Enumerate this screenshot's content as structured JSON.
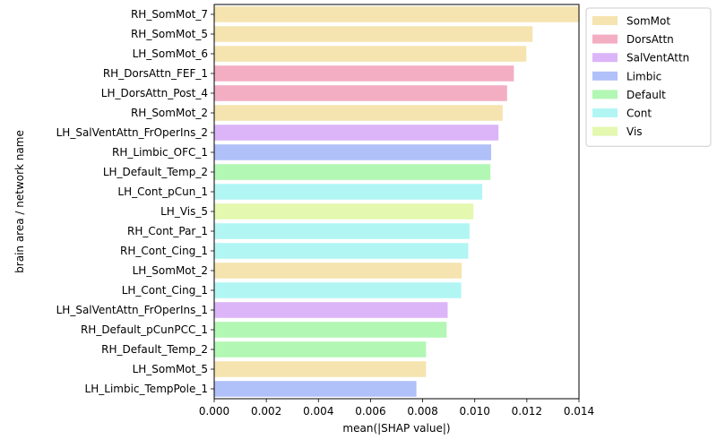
{
  "chart_data": {
    "type": "bar",
    "orientation": "horizontal",
    "title": "",
    "xlabel": "mean(|SHAP value|)",
    "ylabel": "brain area / network name",
    "xlim": [
      0,
      0.014
    ],
    "xticks": [
      "0.000",
      "0.002",
      "0.004",
      "0.006",
      "0.008",
      "0.010",
      "0.012",
      "0.014"
    ],
    "grid": false,
    "legend_position": "top-right outside",
    "categories": [
      "RH_SomMot_7",
      "RH_SomMot_5",
      "LH_SomMot_6",
      "RH_DorsAttn_FEF_1",
      "LH_DorsAttn_Post_4",
      "RH_SomMot_2",
      "LH_SalVentAttn_FrOperIns_2",
      "RH_Limbic_OFC_1",
      "LH_Default_Temp_2",
      "LH_Cont_pCun_1",
      "LH_Vis_5",
      "RH_Cont_Par_1",
      "RH_Cont_Cing_1",
      "LH_SomMot_2",
      "LH_Cont_Cing_1",
      "LH_SalVentAttn_FrOperIns_1",
      "RH_Default_pCunPCC_1",
      "RH_Default_Temp_2",
      "LH_SomMot_5",
      "LH_Limbic_TempPole_1"
    ],
    "values": [
      0.014,
      0.01222,
      0.01198,
      0.0115,
      0.01124,
      0.01107,
      0.01091,
      0.01063,
      0.0106,
      0.01029,
      0.00995,
      0.0098,
      0.00975,
      0.0095,
      0.00948,
      0.00896,
      0.00892,
      0.00813,
      0.00813,
      0.00776
    ],
    "networks": [
      "SomMot",
      "SomMot",
      "SomMot",
      "DorsAttn",
      "DorsAttn",
      "SomMot",
      "SalVentAttn",
      "Limbic",
      "Default",
      "Cont",
      "Vis",
      "Cont",
      "Cont",
      "SomMot",
      "Cont",
      "SalVentAttn",
      "Default",
      "Default",
      "SomMot",
      "Limbic"
    ],
    "legend": [
      {
        "name": "SomMot",
        "color": "#f5e4b0"
      },
      {
        "name": "DorsAttn",
        "color": "#f4aec4"
      },
      {
        "name": "SalVentAttn",
        "color": "#dcb5f8"
      },
      {
        "name": "Limbic",
        "color": "#b0c0f8"
      },
      {
        "name": "Default",
        "color": "#b2f7b4"
      },
      {
        "name": "Cont",
        "color": "#b2f6f4"
      },
      {
        "name": "Vis",
        "color": "#e4f8b0"
      }
    ]
  }
}
